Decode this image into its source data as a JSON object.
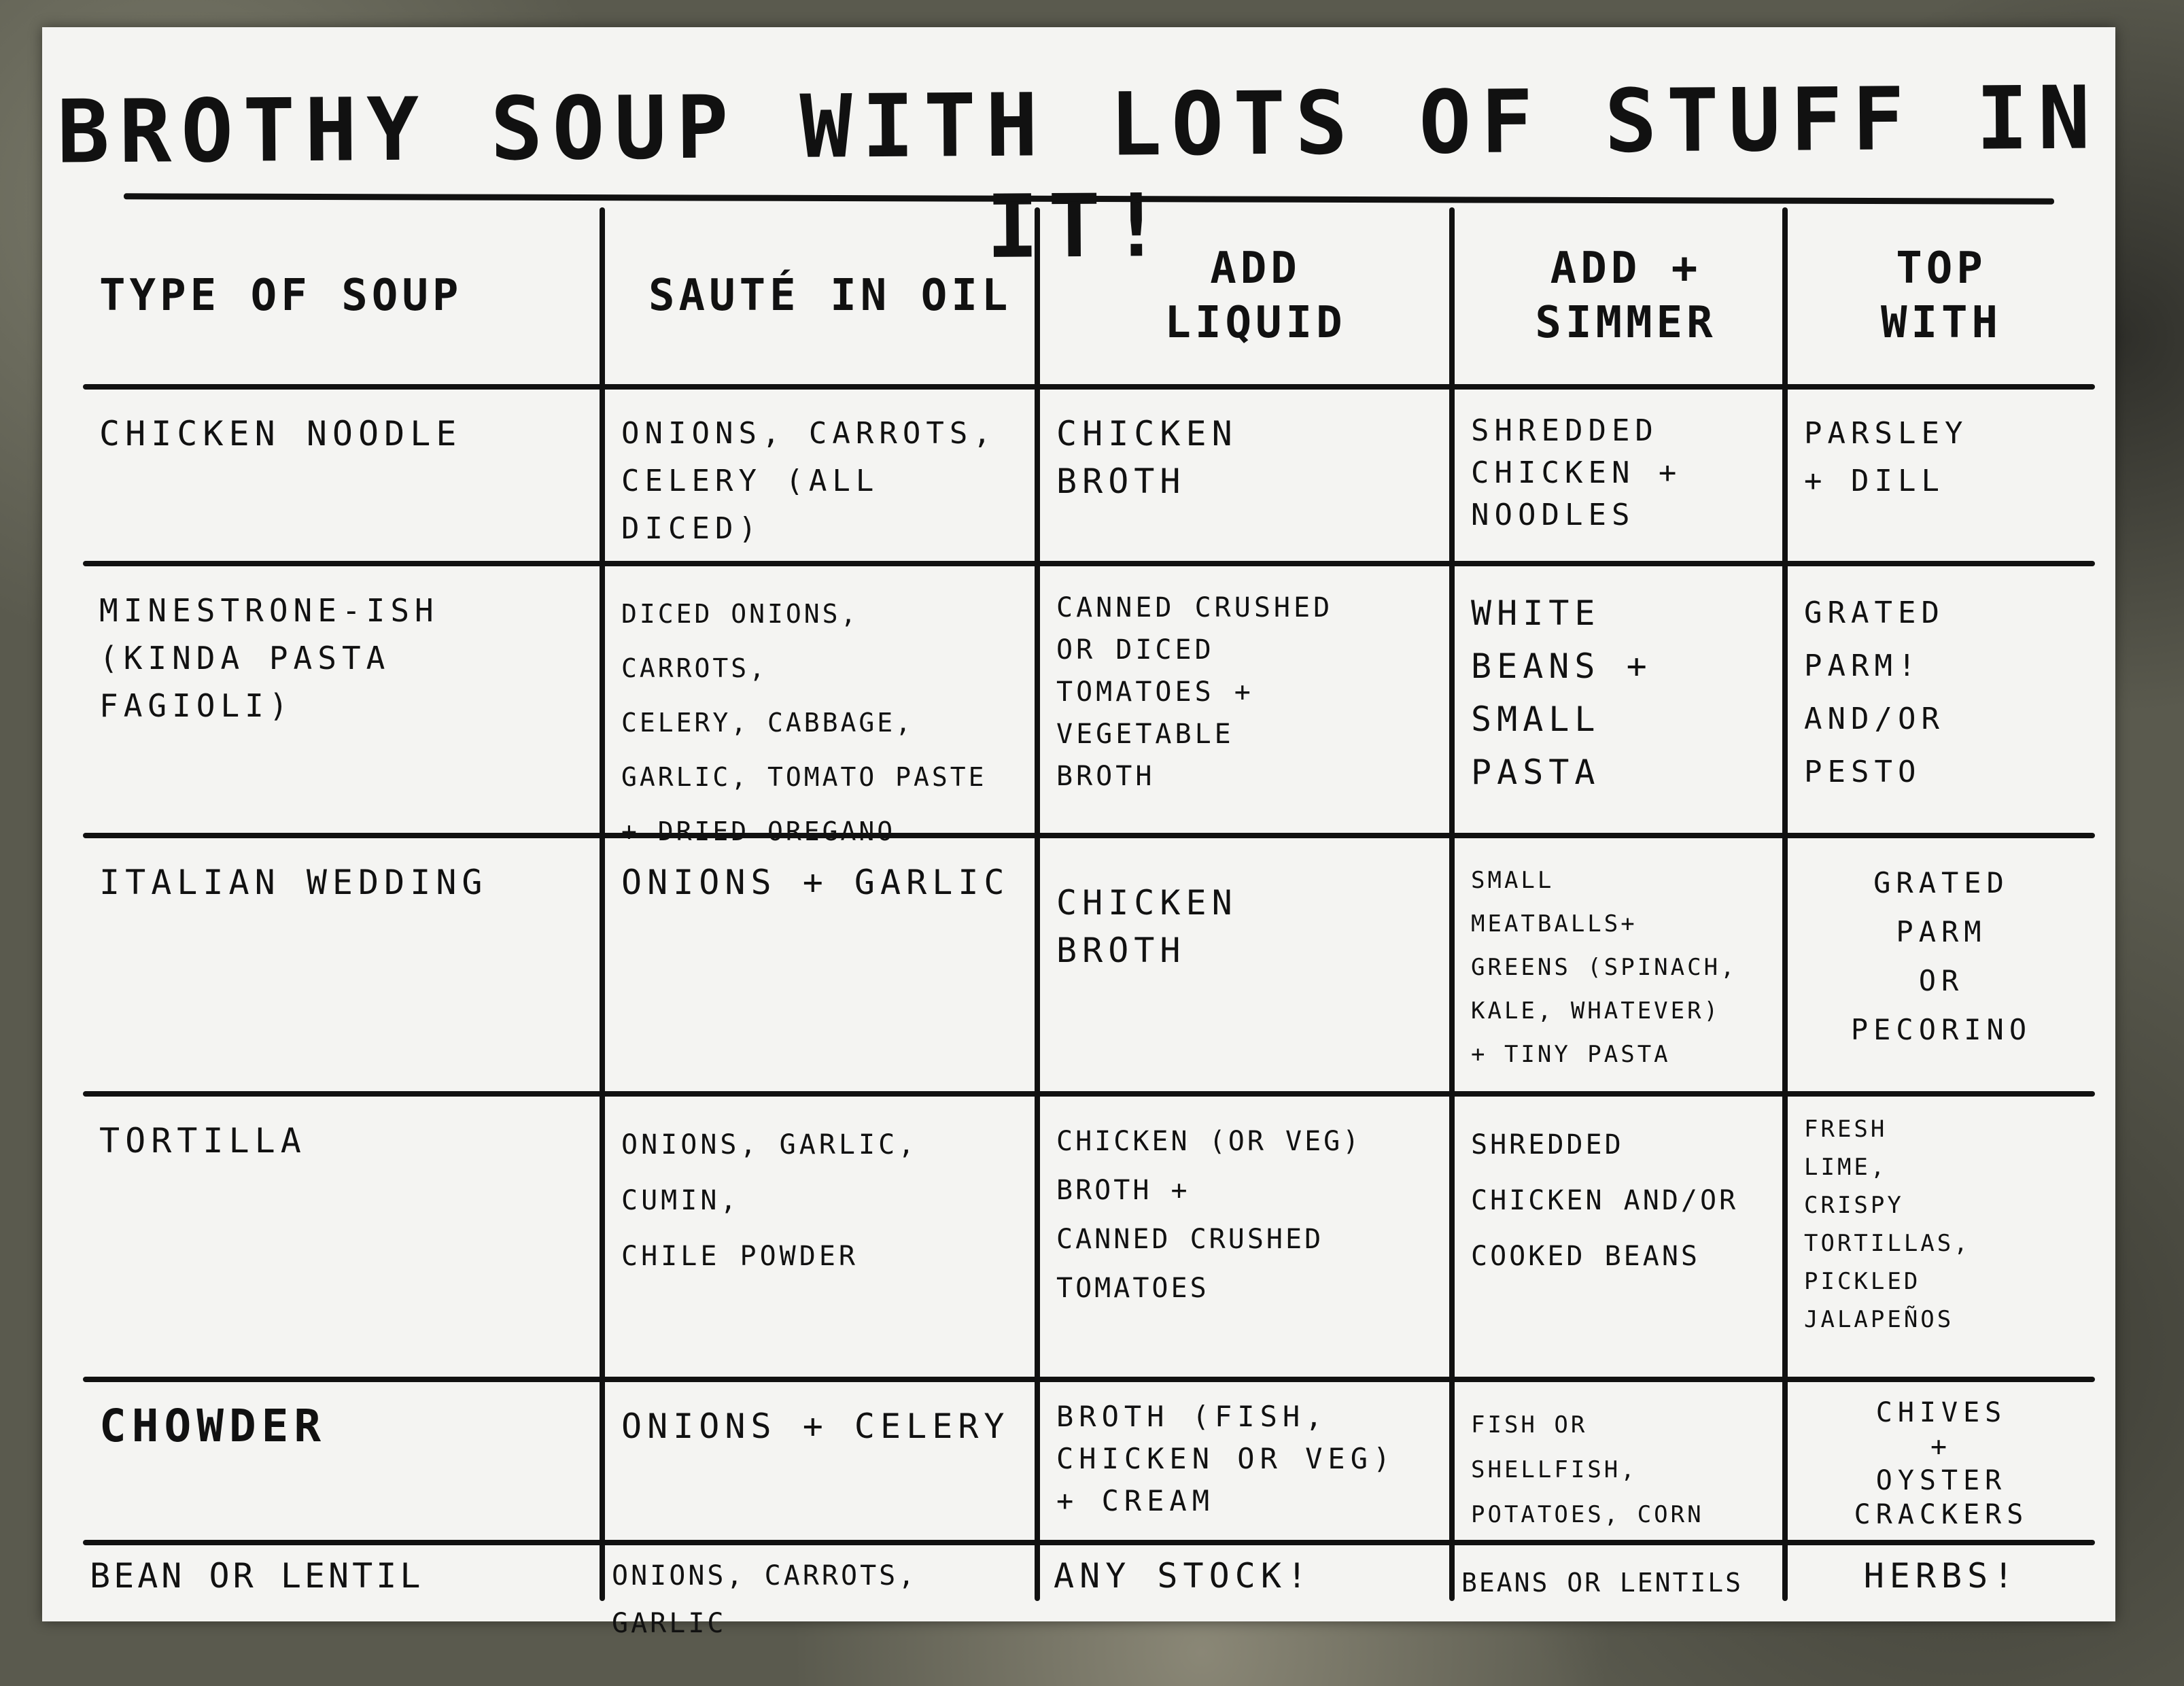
{
  "title": "BROTHY SOUP WITH LOTS OF STUFF IN IT!",
  "columns": [
    "TYPE OF SOUP",
    "SAUTÉ IN OIL",
    "ADD\nLIQUID",
    "ADD +\nSIMMER",
    "TOP\nWITH"
  ],
  "rows": [
    {
      "soup": "CHICKEN NOODLE",
      "saute": "ONIONS, CARROTS,\nCELERY (ALL DICED)",
      "liquid": "CHICKEN\nBROTH",
      "simmer": "SHREDDED\nCHICKEN +\nNOODLES",
      "top": "PARSLEY\n+ DILL"
    },
    {
      "soup": "MINESTRONE-ISH\n(KINDA PASTA\nFAGIOLI)",
      "saute": "DICED ONIONS, CARROTS,\nCELERY, CABBAGE,\nGARLIC, TOMATO PASTE\n+ DRIED OREGANO",
      "liquid": "CANNED CRUSHED\nOR DICED\nTOMATOES +\nVEGETABLE\nBROTH",
      "simmer": "WHITE\nBEANS +\nSMALL\nPASTA",
      "top": "GRATED\nPARM!\nAND/OR\nPESTO"
    },
    {
      "soup": "ITALIAN WEDDING",
      "saute": "ONIONS + GARLIC",
      "liquid": "CHICKEN\nBROTH",
      "simmer": "SMALL\nMEATBALLS+\nGREENS (SPINACH,\nKALE, WHATEVER)\n+ TINY PASTA",
      "top": "GRATED\nPARM\nOR\nPECORINO"
    },
    {
      "soup": "TORTILLA",
      "saute": "ONIONS, GARLIC, CUMIN,\nCHILE POWDER",
      "liquid": "CHICKEN (OR VEG)\nBROTH +\nCANNED CRUSHED\nTOMATOES",
      "simmer": "SHREDDED\nCHICKEN AND/OR\nCOOKED BEANS",
      "top": "FRESH\nLIME,\nCRISPY\nTORTILLAS,\nPICKLED\nJALAPEÑOS"
    },
    {
      "soup": "CHOWDER",
      "saute": "ONIONS + CELERY",
      "liquid": "BROTH (FISH,\nCHICKEN OR VEG)\n+ CREAM",
      "simmer": "FISH OR SHELLFISH,\nPOTATOES, CORN",
      "top": "CHIVES\n+\nOYSTER\nCRACKERS"
    },
    {
      "soup": "BEAN OR LENTIL",
      "saute": "ONIONS, CARROTS, GARLIC",
      "liquid": "ANY STOCK!",
      "simmer": "BEANS OR LENTILS",
      "top": "HERBS!"
    }
  ]
}
